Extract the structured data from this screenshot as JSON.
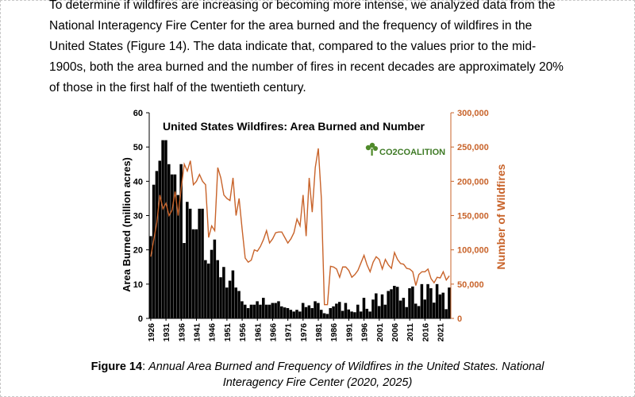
{
  "paragraph_lines": [
    "To determine if wildfires are increasing or becoming more intense, we analyzed data from the",
    "National Interagency Fire Center for the area burned and the frequency of wildfires in the",
    "United States (Figure 14). The data indicate that, compared to the values prior to the mid-",
    "1900s, both the area burned and the number of fires in recent decades are approximately 20%",
    "of those in the first half of the twentieth century."
  ],
  "figure": {
    "logo_text": "CO2COALITION"
  },
  "caption": {
    "label": "Figure 14",
    "separator": ": ",
    "line1": "Annual Area Burned and Frequency of Wildfires in the United States. National",
    "line2": "Interagency Fire Center (2020, 2025)"
  },
  "colors": {
    "bars": "#000000",
    "line": "#c8632a",
    "right_axis": "#c8632a"
  },
  "chart_data": {
    "type": "bar",
    "title": "United States Wildfires: Area Burned and Number",
    "xlabel": "",
    "ylabel": "Area Burned (million acres)",
    "y2label": "Number of Wildfires",
    "ylim": [
      0,
      60
    ],
    "y2lim": [
      0,
      300000
    ],
    "yticks": [
      0,
      10,
      20,
      30,
      40,
      50,
      60
    ],
    "y2ticks": [
      "0",
      "50,000",
      "100,000",
      "150,000",
      "200,000",
      "250,000",
      "300,000"
    ],
    "y2tick_values": [
      0,
      50000,
      100000,
      150000,
      200000,
      250000,
      300000
    ],
    "xticks": [
      "1926",
      "1931",
      "1936",
      "1941",
      "1946",
      "1951",
      "1956",
      "1961",
      "1966",
      "1971",
      "1976",
      "1981",
      "1986",
      "1991",
      "1996",
      "2001",
      "2006",
      "2011",
      "2016",
      "2021"
    ],
    "grid": false,
    "legend": "none",
    "years": [
      1926,
      1927,
      1928,
      1929,
      1930,
      1931,
      1932,
      1933,
      1934,
      1935,
      1936,
      1937,
      1938,
      1939,
      1940,
      1941,
      1942,
      1943,
      1944,
      1945,
      1946,
      1947,
      1948,
      1949,
      1950,
      1951,
      1952,
      1953,
      1954,
      1955,
      1956,
      1957,
      1958,
      1959,
      1960,
      1961,
      1962,
      1963,
      1964,
      1965,
      1966,
      1967,
      1968,
      1969,
      1970,
      1971,
      1972,
      1973,
      1974,
      1975,
      1976,
      1977,
      1978,
      1979,
      1980,
      1981,
      1982,
      1983,
      1984,
      1985,
      1986,
      1987,
      1988,
      1989,
      1990,
      1991,
      1992,
      1993,
      1994,
      1995,
      1996,
      1997,
      1998,
      1999,
      2000,
      2001,
      2002,
      2003,
      2004,
      2005,
      2006,
      2007,
      2008,
      2009,
      2010,
      2011,
      2012,
      2013,
      2014,
      2015,
      2016,
      2017,
      2018,
      2019,
      2020,
      2021,
      2022,
      2023,
      2024
    ],
    "series": [
      {
        "name": "Area Burned (million acres)",
        "type": "bar",
        "axis": "left",
        "values": [
          24,
          39,
          43,
          46,
          52,
          52,
          45,
          42,
          42,
          36,
          45,
          22,
          34,
          32,
          26,
          26,
          32,
          32,
          17,
          16,
          20,
          23,
          17,
          12,
          15,
          9,
          11,
          14,
          9,
          8,
          5,
          4,
          3,
          4,
          4,
          5,
          4,
          6,
          4,
          4,
          4.5,
          4.5,
          5,
          3.5,
          3.2,
          3,
          2.5,
          2,
          2.5,
          2,
          4.5,
          3.3,
          3.8,
          3,
          5,
          4.5,
          2.5,
          1.5,
          1.3,
          3,
          3.5,
          4.3,
          4.8,
          2.2,
          4.5,
          2.6,
          2,
          1.8,
          4,
          2,
          6,
          2.8,
          2,
          5.5,
          7.3,
          3.6,
          7,
          4,
          8,
          8.5,
          9.5,
          9.2,
          5.2,
          6,
          3.3,
          8.8,
          9.3,
          4.3,
          3.6,
          10,
          5.5,
          10,
          8.8,
          4.6,
          10,
          7,
          7.5,
          2.7,
          9
        ]
      },
      {
        "name": "Number of Wildfires",
        "type": "line",
        "axis": "right",
        "values": [
          90000,
          115000,
          140000,
          180000,
          160000,
          168000,
          150000,
          158000,
          185000,
          150000,
          190000,
          225000,
          215000,
          230000,
          195000,
          200000,
          210000,
          200000,
          195000,
          118000,
          135000,
          128000,
          220000,
          205000,
          180000,
          175000,
          172000,
          205000,
          150000,
          175000,
          130000,
          88000,
          82000,
          85000,
          100000,
          98000,
          105000,
          115000,
          128000,
          110000,
          116000,
          125000,
          126000,
          126000,
          118000,
          110000,
          116000,
          125000,
          145000,
          135000,
          180000,
          120000,
          205000,
          155000,
          220000,
          248000,
          175000,
          20000,
          20000,
          76000,
          75000,
          72000,
          60000,
          75000,
          75000,
          70000,
          60000,
          64000,
          70000,
          81000,
          92000,
          78000,
          68000,
          82000,
          90000,
          86000,
          72000,
          86000,
          78000,
          73000,
          96000,
          86000,
          80000,
          79000,
          73000,
          72000,
          68000,
          48000,
          64000,
          68000,
          68000,
          72000,
          58000,
          52000,
          60000,
          59000,
          68000,
          56000,
          62000
        ]
      }
    ]
  }
}
